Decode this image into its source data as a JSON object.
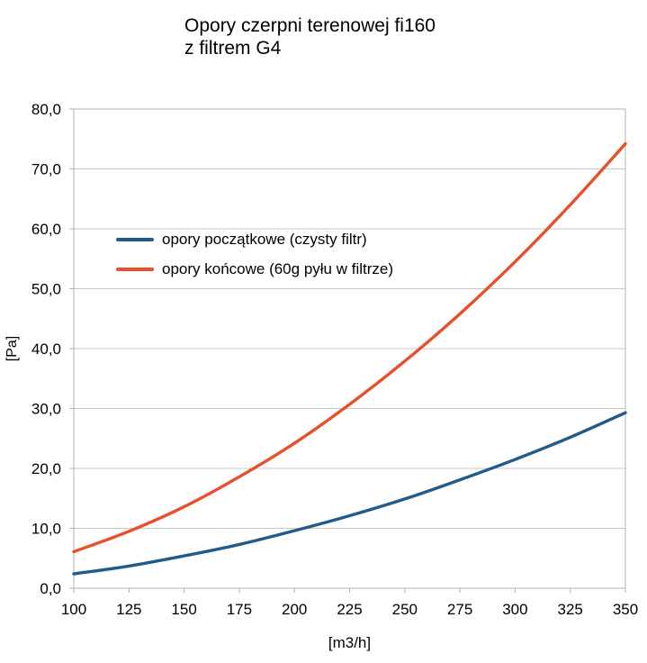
{
  "title": {
    "line1": "Opory czerpni terenowej fi160",
    "line2": "z filtrem G4"
  },
  "legend": {
    "items": [
      {
        "label": "opory początkowe (czysty filtr)",
        "color": "#1F5C8D"
      },
      {
        "label": "opory końcowe (60g pyłu w filtrze)",
        "color": "#E8502A"
      }
    ]
  },
  "colors": {
    "series_initial": "#1F5C8D",
    "series_final": "#E8502A",
    "gridline": "#C8C8C8",
    "plot_border": "#B3B3B3",
    "tick": "#B3B3B3",
    "text": "#000000",
    "background": "#FFFFFF"
  },
  "chart_data": {
    "type": "line",
    "title": "Opory czerpni terenowej fi160 z filtrem G4",
    "xlabel": "[m3/h]",
    "ylabel": "[Pa]",
    "x": [
      100,
      125,
      150,
      175,
      200,
      225,
      250,
      275,
      300,
      325,
      350
    ],
    "series": [
      {
        "name": "opory początkowe (czysty filtr)",
        "color": "#1F5C8D",
        "values": [
          2.4,
          3.7,
          5.4,
          7.3,
          9.6,
          12.1,
          14.9,
          18.1,
          21.5,
          25.2,
          29.3
        ]
      },
      {
        "name": "opory końcowe (60g pyłu w filtrze)",
        "color": "#E8502A",
        "values": [
          6.1,
          9.5,
          13.6,
          18.6,
          24.2,
          30.7,
          37.9,
          45.8,
          54.5,
          64.0,
          74.2
        ]
      }
    ],
    "xlim": [
      100,
      350
    ],
    "ylim": [
      0,
      80
    ],
    "x_ticks": [
      100,
      125,
      150,
      175,
      200,
      225,
      250,
      275,
      300,
      325,
      350
    ],
    "x_tick_labels": [
      "100",
      "125",
      "150",
      "175",
      "200",
      "225",
      "250",
      "275",
      "300",
      "325",
      "350"
    ],
    "y_ticks": [
      0,
      10,
      20,
      30,
      40,
      50,
      60,
      70,
      80
    ],
    "y_tick_labels": [
      "0,0",
      "10,0",
      "20,0",
      "30,0",
      "40,0",
      "50,0",
      "60,0",
      "70,0",
      "80,0"
    ],
    "grid": "horizontal",
    "legend_position": "inside-upper-left"
  }
}
